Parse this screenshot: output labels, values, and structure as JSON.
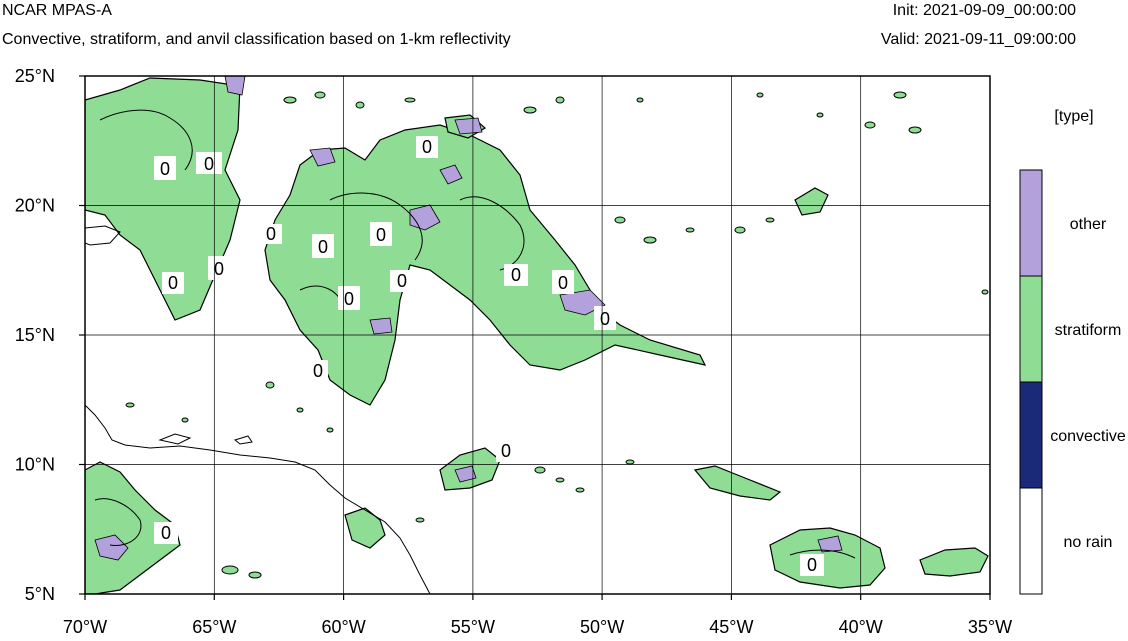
{
  "header": {
    "model": "NCAR MPAS-A",
    "description": "Convective, stratiform, and anvil classification based on 1-km reflectivity",
    "init": "Init: 2021-09-09_00:00:00",
    "valid": "Valid: 2021-09-11_09:00:00"
  },
  "map": {
    "lat_labels": [
      "25°N",
      "20°N",
      "15°N",
      "10°N",
      "5°N"
    ],
    "lon_labels": [
      "70°W",
      "65°W",
      "60°W",
      "55°W",
      "50°W",
      "45°W",
      "40°W",
      "35°W"
    ],
    "lat_range": [
      5,
      25
    ],
    "lon_range": [
      -70,
      -35
    ],
    "contour_label": "0"
  },
  "legend": {
    "title": "[type]",
    "items": [
      {
        "label": "other",
        "color": "#b3a1dc"
      },
      {
        "label": "stratiform",
        "color": "#8fdd95"
      },
      {
        "label": "convective",
        "color": "#1b2a78"
      },
      {
        "label": "no rain",
        "color": "#ffffff"
      }
    ]
  }
}
